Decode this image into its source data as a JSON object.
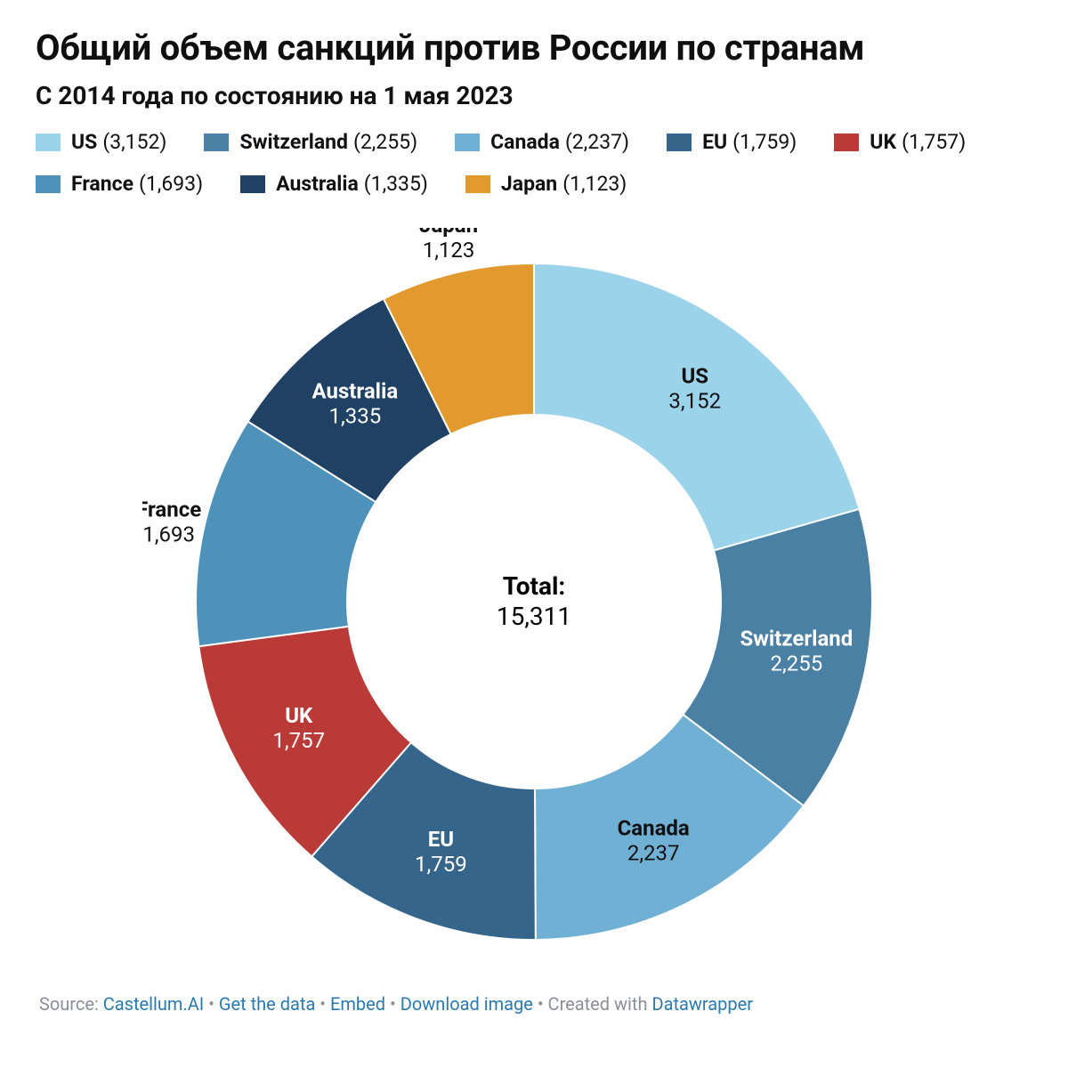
{
  "title": "Общий объем санкций против России по странам",
  "subtitle": "С 2014 года по состоянию на 1 мая 2023",
  "chart": {
    "type": "donut",
    "total_label": "Total:",
    "total_value_display": "15,311",
    "total_value": 15311,
    "outer_radius": 380,
    "inner_radius": 210,
    "background_color": "#ffffff",
    "label_fontsize": 24,
    "center_fontsize": 28,
    "slices": [
      {
        "name": "US",
        "value": 3152,
        "display": "3,152",
        "color": "#9bd3eb",
        "label_color": "dark",
        "label_radius": 300
      },
      {
        "name": "Switzerland",
        "value": 2255,
        "display": "2,255",
        "color": "#4a80a3",
        "label_color": "light",
        "label_radius": 300
      },
      {
        "name": "Canada",
        "value": 2237,
        "display": "2,237",
        "color": "#6fb0d4",
        "label_color": "dark",
        "label_radius": 300
      },
      {
        "name": "EU",
        "value": 1759,
        "display": "1,759",
        "color": "#35658a",
        "label_color": "light",
        "label_radius": 300
      },
      {
        "name": "UK",
        "value": 1757,
        "display": "1,757",
        "color": "#b93a36",
        "label_color": "light",
        "label_radius": 300
      },
      {
        "name": "France",
        "value": 1693,
        "display": "1,693",
        "color": "#4e92bb",
        "label_color": "dark",
        "label_radius": 420
      },
      {
        "name": "Australia",
        "value": 1335,
        "display": "1,335",
        "color": "#1f4163",
        "label_color": "light",
        "label_radius": 300
      },
      {
        "name": "Japan",
        "value": 1123,
        "display": "1,123",
        "color": "#e29a2f",
        "label_color": "dark",
        "label_radius": 420
      }
    ]
  },
  "legend": [
    {
      "name": "US",
      "value_display": "(3,152)",
      "color": "#9bd3eb"
    },
    {
      "name": "Switzerland",
      "value_display": "(2,255)",
      "color": "#4a80a3"
    },
    {
      "name": "Canada",
      "value_display": "(2,237)",
      "color": "#6fb0d4"
    },
    {
      "name": "EU",
      "value_display": "(1,759)",
      "color": "#35658a"
    },
    {
      "name": "UK",
      "value_display": "(1,757)",
      "color": "#b93a36"
    },
    {
      "name": "France",
      "value_display": "(1,693)",
      "color": "#4e92bb"
    },
    {
      "name": "Australia",
      "value_display": "(1,335)",
      "color": "#1f4163"
    },
    {
      "name": "Japan",
      "value_display": "(1,123)",
      "color": "#e29a2f"
    }
  ],
  "footer": {
    "source_label": "Source:",
    "links": [
      "Castellum.AI",
      "Get the data",
      "Embed",
      "Download image"
    ],
    "created_with_label": "Created with",
    "created_with_link": "Datawrapper"
  }
}
